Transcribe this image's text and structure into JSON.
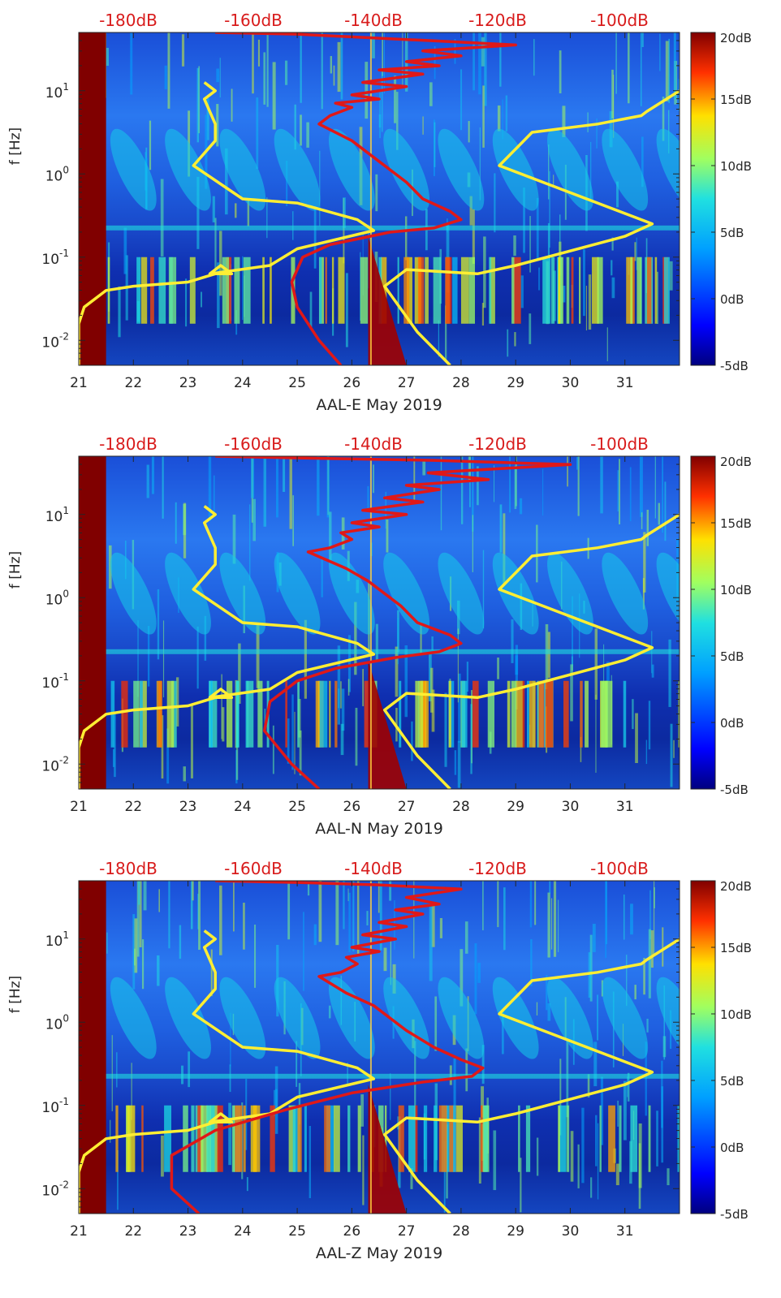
{
  "chart_data": [
    {
      "type": "heatmap",
      "title": "",
      "xlabel": "AAL-E May 2019",
      "ylabel": "f [Hz]",
      "x_ticks": [
        "21",
        "22",
        "23",
        "24",
        "25",
        "26",
        "27",
        "28",
        "29",
        "30",
        "31"
      ],
      "y_ticks": [
        "10-2",
        "10-1",
        "100",
        "101"
      ],
      "y_tick_labels": [
        {
          "base": "10",
          "exp": "-2"
        },
        {
          "base": "10",
          "exp": "-1"
        },
        {
          "base": "10",
          "exp": "0"
        },
        {
          "base": "10",
          "exp": "1"
        }
      ],
      "xlim": [
        21,
        32
      ],
      "ylim_log10": [
        -2.3,
        1.7
      ],
      "top_axis_labels": [
        "-180dB",
        "-160dB",
        "-140dB",
        "-120dB",
        "-100dB"
      ],
      "colorbar": {
        "labels": [
          "20dB",
          "15dB",
          "10dB",
          "5dB",
          "0dB",
          "-5dB"
        ],
        "range_db": [
          -5,
          20
        ]
      },
      "series": [
        {
          "name": "yellow noise-model curve",
          "color": "#ffee33",
          "points": [
            [
              21.0,
              -2.3
            ],
            [
              21.0,
              -1.8
            ],
            [
              21.1,
              -1.6
            ],
            [
              21.5,
              -1.4
            ],
            [
              22.0,
              -1.35
            ],
            [
              23.0,
              -1.3
            ],
            [
              23.5,
              -1.2
            ],
            [
              23.8,
              -1.2
            ],
            [
              23.6,
              -1.1
            ],
            [
              23.4,
              -1.2
            ],
            [
              24.5,
              -1.1
            ],
            [
              25.0,
              -0.9
            ],
            [
              26.4,
              -0.68
            ],
            [
              26.1,
              -0.55
            ],
            [
              25.0,
              -0.35
            ],
            [
              24.0,
              -0.3
            ],
            [
              23.1,
              0.1
            ],
            [
              23.5,
              0.4
            ],
            [
              23.5,
              0.6
            ],
            [
              23.3,
              0.9
            ],
            [
              23.5,
              1.0
            ],
            [
              23.3,
              1.1
            ]
          ]
        },
        {
          "name": "yellow noise-model curve (right)",
          "color": "#ffee33",
          "points": [
            [
              27.8,
              -2.3
            ],
            [
              27.2,
              -1.9
            ],
            [
              26.6,
              -1.35
            ],
            [
              27.0,
              -1.15
            ],
            [
              28.3,
              -1.2
            ],
            [
              29.0,
              -1.1
            ],
            [
              31.0,
              -0.75
            ],
            [
              31.5,
              -0.6
            ],
            [
              29.5,
              -0.1
            ],
            [
              28.7,
              0.1
            ],
            [
              29.3,
              0.5
            ],
            [
              30.5,
              0.6
            ],
            [
              31.3,
              0.7
            ],
            [
              31.4,
              0.75
            ],
            [
              32.0,
              1.0
            ]
          ]
        },
        {
          "name": "red PSD curve",
          "color": "#e01818",
          "points": [
            [
              25.8,
              -2.3
            ],
            [
              25.4,
              -2.0
            ],
            [
              25.0,
              -1.6
            ],
            [
              24.9,
              -1.3
            ],
            [
              25.1,
              -1.0
            ],
            [
              25.6,
              -0.85
            ],
            [
              26.7,
              -0.7
            ],
            [
              27.5,
              -0.65
            ],
            [
              28.0,
              -0.55
            ],
            [
              27.8,
              -0.45
            ],
            [
              27.3,
              -0.3
            ],
            [
              27.0,
              -0.1
            ],
            [
              26.4,
              0.2
            ],
            [
              26.0,
              0.4
            ],
            [
              25.4,
              0.6
            ],
            [
              25.6,
              0.7
            ],
            [
              26.0,
              0.8
            ],
            [
              25.7,
              0.85
            ],
            [
              26.5,
              0.9
            ],
            [
              26.0,
              0.95
            ],
            [
              27.0,
              1.05
            ],
            [
              26.2,
              1.1
            ],
            [
              27.3,
              1.2
            ],
            [
              26.5,
              1.25
            ],
            [
              27.6,
              1.3
            ],
            [
              27.0,
              1.35
            ],
            [
              28.0,
              1.42
            ],
            [
              27.3,
              1.48
            ],
            [
              29.0,
              1.55
            ],
            [
              27.5,
              1.6
            ],
            [
              25.0,
              1.68
            ],
            [
              23.5,
              1.7
            ]
          ]
        }
      ]
    },
    {
      "type": "heatmap",
      "title": "",
      "xlabel": "AAL-N May 2019",
      "ylabel": "f [Hz]",
      "x_ticks": [
        "21",
        "22",
        "23",
        "24",
        "25",
        "26",
        "27",
        "28",
        "29",
        "30",
        "31"
      ],
      "y_ticks": [
        "10-2",
        "10-1",
        "100",
        "101"
      ],
      "y_tick_labels": [
        {
          "base": "10",
          "exp": "-2"
        },
        {
          "base": "10",
          "exp": "-1"
        },
        {
          "base": "10",
          "exp": "0"
        },
        {
          "base": "10",
          "exp": "1"
        }
      ],
      "xlim": [
        21,
        32
      ],
      "ylim_log10": [
        -2.3,
        1.7
      ],
      "top_axis_labels": [
        "-180dB",
        "-160dB",
        "-140dB",
        "-120dB",
        "-100dB"
      ],
      "colorbar": {
        "labels": [
          "20dB",
          "15dB",
          "10dB",
          "5dB",
          "0dB",
          "-5dB"
        ],
        "range_db": [
          -5,
          20
        ]
      },
      "series": [
        {
          "name": "yellow noise-model curve",
          "color": "#ffee33",
          "points": [
            [
              21.0,
              -2.3
            ],
            [
              21.0,
              -1.8
            ],
            [
              21.1,
              -1.6
            ],
            [
              21.5,
              -1.4
            ],
            [
              22.0,
              -1.35
            ],
            [
              23.0,
              -1.3
            ],
            [
              23.5,
              -1.2
            ],
            [
              23.8,
              -1.2
            ],
            [
              23.6,
              -1.1
            ],
            [
              23.4,
              -1.2
            ],
            [
              24.5,
              -1.1
            ],
            [
              25.0,
              -0.9
            ],
            [
              26.4,
              -0.68
            ],
            [
              26.1,
              -0.55
            ],
            [
              25.0,
              -0.35
            ],
            [
              24.0,
              -0.3
            ],
            [
              23.1,
              0.1
            ],
            [
              23.5,
              0.4
            ],
            [
              23.5,
              0.6
            ],
            [
              23.3,
              0.9
            ],
            [
              23.5,
              1.0
            ],
            [
              23.3,
              1.1
            ]
          ]
        },
        {
          "name": "yellow noise-model curve (right)",
          "color": "#ffee33",
          "points": [
            [
              27.8,
              -2.3
            ],
            [
              27.2,
              -1.9
            ],
            [
              26.6,
              -1.35
            ],
            [
              27.0,
              -1.15
            ],
            [
              28.3,
              -1.2
            ],
            [
              29.0,
              -1.1
            ],
            [
              31.0,
              -0.75
            ],
            [
              31.5,
              -0.6
            ],
            [
              29.5,
              -0.1
            ],
            [
              28.7,
              0.1
            ],
            [
              29.3,
              0.5
            ],
            [
              30.5,
              0.6
            ],
            [
              31.3,
              0.7
            ],
            [
              31.4,
              0.75
            ],
            [
              32.0,
              1.0
            ]
          ]
        },
        {
          "name": "red PSD curve",
          "color": "#e01818",
          "points": [
            [
              25.4,
              -2.3
            ],
            [
              24.9,
              -2.0
            ],
            [
              24.4,
              -1.6
            ],
            [
              24.5,
              -1.25
            ],
            [
              25.0,
              -1.0
            ],
            [
              25.7,
              -0.85
            ],
            [
              26.8,
              -0.72
            ],
            [
              27.6,
              -0.65
            ],
            [
              28.0,
              -0.55
            ],
            [
              27.8,
              -0.45
            ],
            [
              27.2,
              -0.3
            ],
            [
              26.9,
              -0.1
            ],
            [
              26.3,
              0.2
            ],
            [
              25.9,
              0.35
            ],
            [
              25.2,
              0.55
            ],
            [
              25.6,
              0.6
            ],
            [
              26.0,
              0.7
            ],
            [
              25.8,
              0.78
            ],
            [
              26.5,
              0.85
            ],
            [
              26.0,
              0.9
            ],
            [
              27.0,
              1.0
            ],
            [
              26.2,
              1.05
            ],
            [
              27.3,
              1.15
            ],
            [
              26.6,
              1.2
            ],
            [
              27.6,
              1.3
            ],
            [
              27.0,
              1.35
            ],
            [
              28.5,
              1.42
            ],
            [
              27.4,
              1.5
            ],
            [
              30.0,
              1.6
            ],
            [
              27.5,
              1.65
            ],
            [
              25.0,
              1.68
            ],
            [
              23.5,
              1.7
            ]
          ]
        }
      ]
    },
    {
      "type": "heatmap",
      "title": "",
      "xlabel": "AAL-Z May 2019",
      "ylabel": "f [Hz]",
      "x_ticks": [
        "21",
        "22",
        "23",
        "24",
        "25",
        "26",
        "27",
        "28",
        "29",
        "30",
        "31"
      ],
      "y_ticks": [
        "10-2",
        "10-1",
        "100",
        "101"
      ],
      "y_tick_labels": [
        {
          "base": "10",
          "exp": "-2"
        },
        {
          "base": "10",
          "exp": "-1"
        },
        {
          "base": "10",
          "exp": "0"
        },
        {
          "base": "10",
          "exp": "1"
        }
      ],
      "xlim": [
        21,
        32
      ],
      "ylim_log10": [
        -2.3,
        1.7
      ],
      "top_axis_labels": [
        "-180dB",
        "-160dB",
        "-140dB",
        "-120dB",
        "-100dB"
      ],
      "colorbar": {
        "labels": [
          "20dB",
          "15dB",
          "10dB",
          "5dB",
          "0dB",
          "-5dB"
        ],
        "range_db": [
          -5,
          20
        ]
      },
      "series": [
        {
          "name": "yellow noise-model curve",
          "color": "#ffee33",
          "points": [
            [
              21.0,
              -2.3
            ],
            [
              21.0,
              -1.8
            ],
            [
              21.1,
              -1.6
            ],
            [
              21.5,
              -1.4
            ],
            [
              22.0,
              -1.35
            ],
            [
              23.0,
              -1.3
            ],
            [
              23.5,
              -1.2
            ],
            [
              23.8,
              -1.2
            ],
            [
              23.6,
              -1.1
            ],
            [
              23.4,
              -1.2
            ],
            [
              24.5,
              -1.1
            ],
            [
              25.0,
              -0.9
            ],
            [
              26.4,
              -0.68
            ],
            [
              26.1,
              -0.55
            ],
            [
              25.0,
              -0.35
            ],
            [
              24.0,
              -0.3
            ],
            [
              23.1,
              0.1
            ],
            [
              23.5,
              0.4
            ],
            [
              23.5,
              0.6
            ],
            [
              23.3,
              0.9
            ],
            [
              23.5,
              1.0
            ],
            [
              23.3,
              1.1
            ]
          ]
        },
        {
          "name": "yellow noise-model curve (right)",
          "color": "#ffee33",
          "points": [
            [
              27.8,
              -2.3
            ],
            [
              27.2,
              -1.9
            ],
            [
              26.6,
              -1.35
            ],
            [
              27.0,
              -1.15
            ],
            [
              28.3,
              -1.2
            ],
            [
              29.0,
              -1.1
            ],
            [
              31.0,
              -0.75
            ],
            [
              31.5,
              -0.6
            ],
            [
              29.5,
              -0.1
            ],
            [
              28.7,
              0.1
            ],
            [
              29.3,
              0.5
            ],
            [
              30.5,
              0.6
            ],
            [
              31.3,
              0.7
            ],
            [
              31.4,
              0.75
            ],
            [
              32.0,
              1.0
            ]
          ]
        },
        {
          "name": "red PSD curve",
          "color": "#e01818",
          "points": [
            [
              23.2,
              -2.3
            ],
            [
              22.7,
              -2.0
            ],
            [
              22.7,
              -1.6
            ],
            [
              23.5,
              -1.3
            ],
            [
              24.8,
              -1.05
            ],
            [
              26.0,
              -0.85
            ],
            [
              27.3,
              -0.72
            ],
            [
              28.2,
              -0.65
            ],
            [
              28.4,
              -0.55
            ],
            [
              28.0,
              -0.45
            ],
            [
              27.5,
              -0.3
            ],
            [
              27.0,
              -0.1
            ],
            [
              26.4,
              0.2
            ],
            [
              25.9,
              0.35
            ],
            [
              25.4,
              0.55
            ],
            [
              25.8,
              0.6
            ],
            [
              26.1,
              0.7
            ],
            [
              25.9,
              0.78
            ],
            [
              26.5,
              0.85
            ],
            [
              26.0,
              0.9
            ],
            [
              26.8,
              1.0
            ],
            [
              26.2,
              1.05
            ],
            [
              27.0,
              1.15
            ],
            [
              26.5,
              1.2
            ],
            [
              27.3,
              1.3
            ],
            [
              26.8,
              1.35
            ],
            [
              27.6,
              1.42
            ],
            [
              27.0,
              1.5
            ],
            [
              28.0,
              1.6
            ],
            [
              26.5,
              1.65
            ],
            [
              25.0,
              1.68
            ],
            [
              23.5,
              1.7
            ]
          ]
        }
      ]
    }
  ]
}
